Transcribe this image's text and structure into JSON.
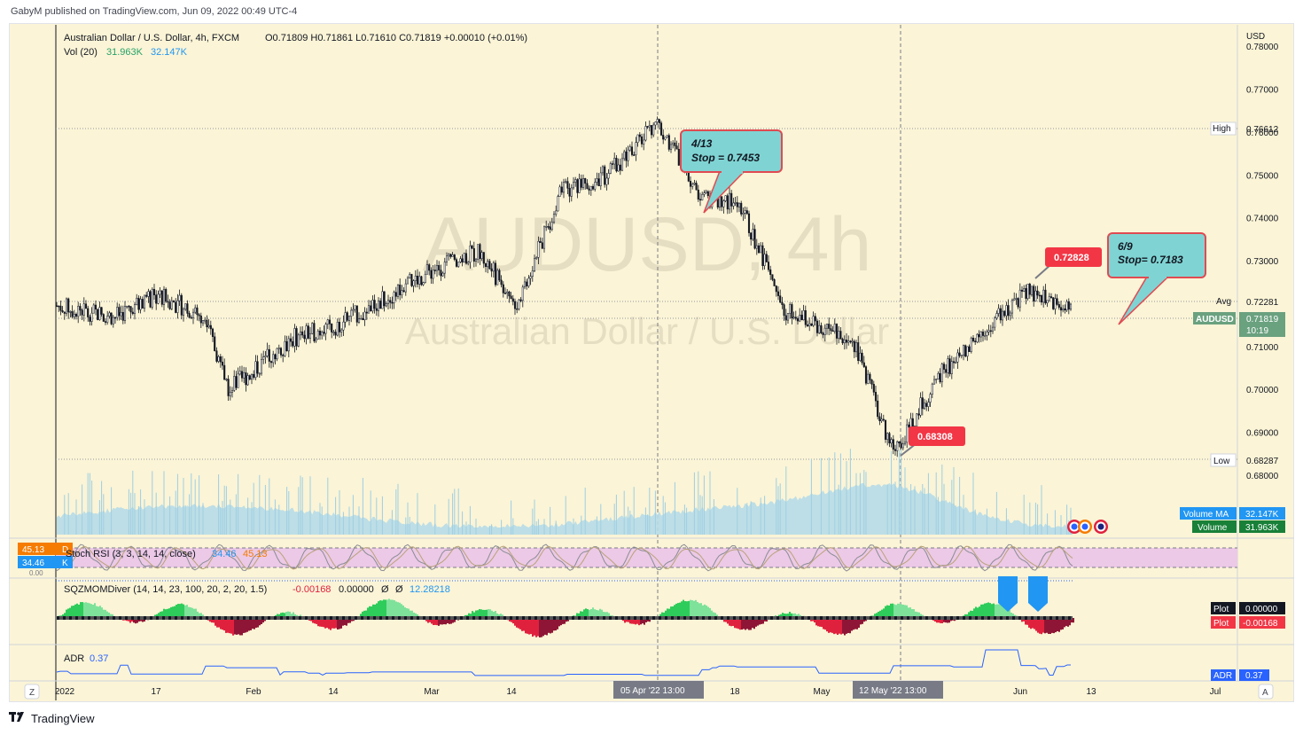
{
  "published": "GabyM published on TradingView.com, Jun 09, 2022 00:49 UTC-4",
  "header": {
    "symbol": "Australian Dollar / U.S. Dollar, 4h, FXCM",
    "ohlc": "O0.71809 H0.71861 L0.71610 C0.71819 +0.00010 (+0.01%)",
    "vol_label": "Vol (20)",
    "vol_value": "31.963K",
    "vol_ma_value": "32.147K"
  },
  "watermark": {
    "ticker": "AUDUSD, 4h",
    "name": "Australian Dollar / U.S. Dollar"
  },
  "price_axis": {
    "currency": "USD",
    "ticks": [
      "0.78000",
      "0.77000",
      "0.76000",
      "0.75000",
      "0.74000",
      "0.73000",
      "0.71000",
      "0.70000",
      "0.69000",
      "0.68000"
    ],
    "high_label": "High",
    "high_value": "0.76612",
    "avg_label": "Avg",
    "avg_value": "0.72281",
    "low_label": "Low",
    "low_value": "0.68287",
    "last_symbol": "AUDUSD",
    "last_value": "0.71819",
    "countdown": "10:19"
  },
  "time_axis": {
    "ticks": [
      "2022",
      "17",
      "Feb",
      "14",
      "Mar",
      "14",
      "18",
      "May",
      "Jun",
      "13",
      "Jul"
    ],
    "cursor_a": "05 Apr '22   13:00",
    "cursor_b": "12 May '22   13:00",
    "left_btn": "Z",
    "right_btn": "A"
  },
  "annotations": {
    "callout_1_line1": "4/13",
    "callout_1_line2": "Stop = 0.7453",
    "callout_2_line1": "6/9",
    "callout_2_line2": "Stop= 0.7183",
    "price_tag_high": "0.72828",
    "price_tag_low": "0.68308"
  },
  "volume_labels": {
    "ma_label": "Volume MA",
    "ma_value": "32.147K",
    "vol_label": "Volume",
    "vol_value": "31.963K"
  },
  "stoch": {
    "title": "Stoch RSI (3, 3, 14, 14, close)",
    "k_value": "34.46",
    "d_value": "45.13",
    "scale_top": "45.13",
    "scale_bottom": "34.46",
    "d_letter": "D",
    "k_letter": "K",
    "zero": "0.00"
  },
  "sqz": {
    "title": "SQZMOMDiver (14, 14, 23, 100, 20, 2, 20, 1.5)",
    "v1": "-0.00168",
    "v2": "0.00000",
    "v3": "Ø",
    "v4": "Ø",
    "v5": "12.28218",
    "plot_label": "Plot",
    "plot_value_1": "0.00000",
    "plot_value_2": "-0.00168"
  },
  "adr": {
    "title": "ADR",
    "value": "0.37",
    "axis_label": "ADR",
    "axis_value": "0.37"
  },
  "footer": {
    "brand": "TradingView"
  },
  "colors": {
    "background": "#fbf4d6",
    "candle": "#131722",
    "volume": "#9ecfe3",
    "volume_area": "#b6dce8",
    "stoch_band": "#e8c8e6",
    "callout": "#7fd4d3",
    "callout_border": "#e04a52",
    "tag_red": "#f23645",
    "last_price": "#6aa17f",
    "sqz_green": "#2ecc5a",
    "sqz_red": "#e0213e",
    "sqz_maroon": "#8e1535",
    "adr_line": "#2962ff",
    "vol_ma_label": "#2196f3",
    "vol_label": "#26a269"
  },
  "chart_data": [
    {
      "type": "candlestick",
      "symbol": "AUDUSD",
      "interval": "4h",
      "ylim": [
        0.6775,
        0.785
      ],
      "x": [
        "2022-01-01",
        "2022-01-10",
        "2022-01-17",
        "2022-01-24",
        "2022-01-28",
        "2022-02-07",
        "2022-02-14",
        "2022-02-21",
        "2022-03-01",
        "2022-03-08",
        "2022-03-14",
        "2022-03-21",
        "2022-03-28",
        "2022-04-05",
        "2022-04-12",
        "2022-04-18",
        "2022-04-25",
        "2022-05-02",
        "2022-05-06",
        "2022-05-12",
        "2022-05-19",
        "2022-05-26",
        "2022-06-02",
        "2022-06-09"
      ],
      "close": [
        0.7195,
        0.717,
        0.722,
        0.717,
        0.7,
        0.712,
        0.715,
        0.721,
        0.728,
        0.732,
        0.72,
        0.746,
        0.75,
        0.762,
        0.745,
        0.743,
        0.718,
        0.714,
        0.71,
        0.685,
        0.703,
        0.714,
        0.723,
        0.7182
      ],
      "high_price": 0.76612,
      "low_price": 0.68287,
      "avg_price": 0.72281,
      "last_price": 0.71819
    },
    {
      "type": "bar",
      "name": "Volume",
      "last": "31.963K",
      "ma_last": "32.147K"
    },
    {
      "type": "line",
      "name": "Stoch RSI",
      "k": 34.46,
      "d": 45.13
    },
    {
      "type": "area",
      "name": "SQZMOMDiver",
      "last": -0.00168
    },
    {
      "type": "line",
      "name": "ADR",
      "last": 0.37
    }
  ]
}
